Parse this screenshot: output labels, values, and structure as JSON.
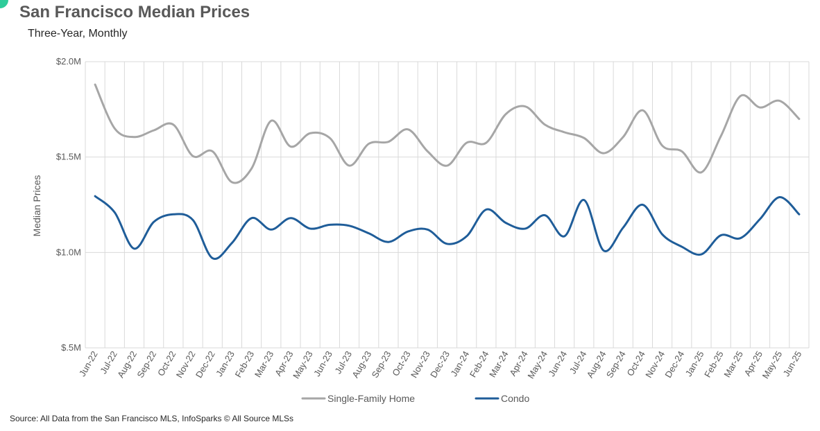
{
  "title": "San Francisco Median Prices",
  "subtitle": "Three-Year, Monthly",
  "source": "Source: All Data from the San Francisco MLS, InfoSparks © All Source MLSs",
  "colors": {
    "single_family": "#a6a6a6",
    "condo": "#1f5d99",
    "grid": "#d9d9d9",
    "accent": "#2ecc9a"
  },
  "chart_data": {
    "type": "line",
    "ylabel": "Median Prices",
    "ylim": [
      500000,
      2000000
    ],
    "yticks": [
      500000,
      1000000,
      1500000,
      2000000
    ],
    "ytick_labels": [
      "$.5M",
      "$1.0M",
      "$1.5M",
      "$2.0M"
    ],
    "grid": true,
    "legend_position": "bottom",
    "x": [
      "Jun-22",
      "Jul-22",
      "Aug-22",
      "Sep-22",
      "Oct-22",
      "Nov-22",
      "Dec-22",
      "Jan-23",
      "Feb-23",
      "Mar-23",
      "Apr-23",
      "May-23",
      "Jun-23",
      "Jul-23",
      "Aug-23",
      "Sep-23",
      "Oct-23",
      "Nov-23",
      "Dec-23",
      "Jan-24",
      "Feb-24",
      "Mar-24",
      "Apr-24",
      "May-24",
      "Jun-24",
      "Jul-24",
      "Aug-24",
      "Sep-24",
      "Oct-24",
      "Nov-24",
      "Dec-24",
      "Jan-25",
      "Feb-25",
      "Mar-25",
      "Apr-25",
      "May-25",
      "Jun-25"
    ],
    "series": [
      {
        "name": "Single-Family Home",
        "values": [
          1880000,
          1650000,
          1605000,
          1640000,
          1670000,
          1505000,
          1530000,
          1368000,
          1440000,
          1690000,
          1555000,
          1625000,
          1600000,
          1455000,
          1570000,
          1580000,
          1645000,
          1530000,
          1455000,
          1575000,
          1575000,
          1725000,
          1765000,
          1670000,
          1630000,
          1600000,
          1520000,
          1605000,
          1745000,
          1560000,
          1530000,
          1420000,
          1610000,
          1820000,
          1760000,
          1795000,
          1700000
        ]
      },
      {
        "name": "Condo",
        "values": [
          1295000,
          1210000,
          1020000,
          1160000,
          1200000,
          1170000,
          970000,
          1050000,
          1180000,
          1120000,
          1180000,
          1125000,
          1145000,
          1140000,
          1100000,
          1055000,
          1110000,
          1120000,
          1045000,
          1085000,
          1225000,
          1155000,
          1125000,
          1195000,
          1085000,
          1275000,
          1010000,
          1130000,
          1250000,
          1095000,
          1030000,
          990000,
          1090000,
          1075000,
          1175000,
          1290000,
          1200000
        ]
      }
    ]
  }
}
